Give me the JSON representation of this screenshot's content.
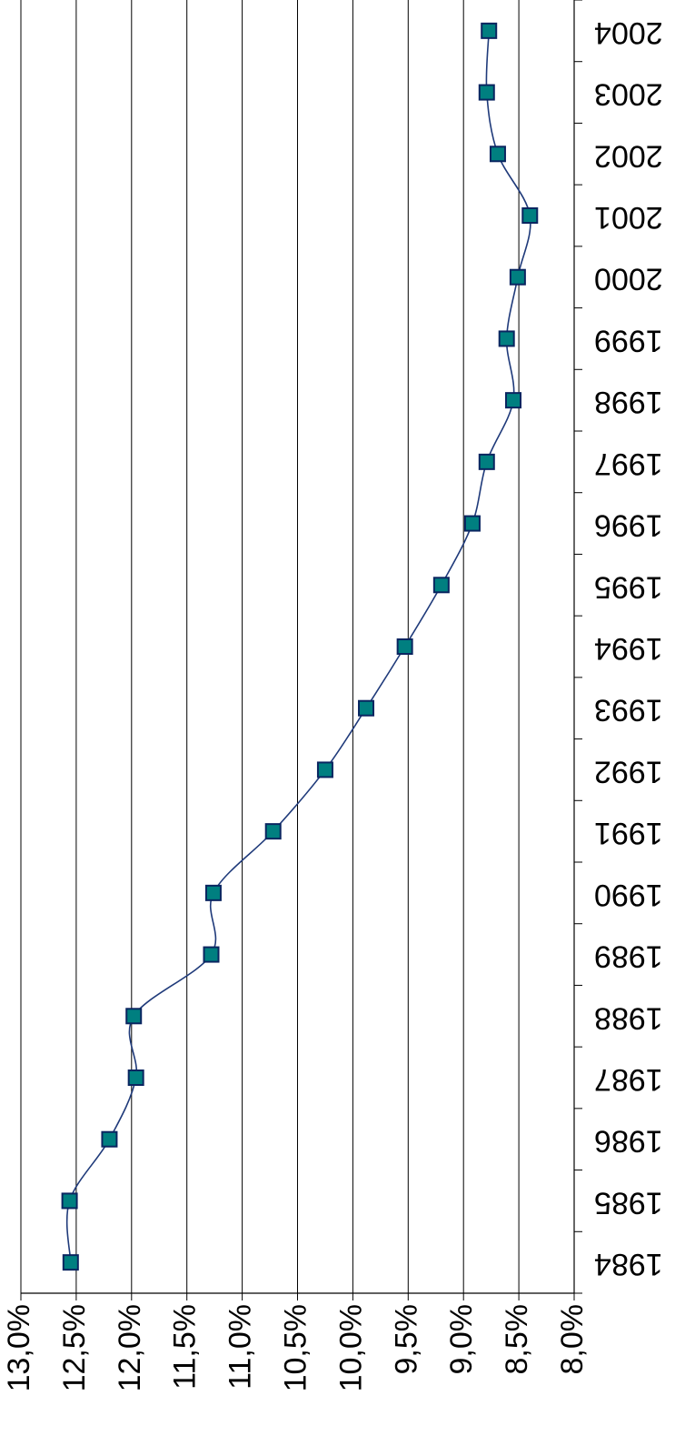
{
  "chart_data": {
    "type": "line",
    "title": "",
    "xlabel": "",
    "ylabel": "",
    "categories": [
      "1984",
      "1985",
      "1986",
      "1987",
      "1988",
      "1989",
      "1990",
      "1991",
      "1992",
      "1993",
      "1994",
      "1995",
      "1996",
      "1997",
      "1998",
      "1999",
      "2000",
      "2001",
      "2002",
      "2003",
      "2004"
    ],
    "series": [
      {
        "values": [
          12.55,
          12.56,
          12.2,
          11.96,
          11.98,
          11.28,
          11.26,
          10.72,
          10.25,
          9.88,
          9.53,
          9.2,
          8.92,
          8.79,
          8.55,
          8.61,
          8.51,
          8.4,
          8.69,
          8.79,
          8.77
        ]
      }
    ],
    "ylim": [
      8.0,
      13.0
    ],
    "y_ticks": [
      "8,0%",
      "8,5%",
      "9,0%",
      "9,5%",
      "10,0%",
      "10,5%",
      "11,0%",
      "11,5%",
      "12,0%",
      "12,5%",
      "13,0%"
    ],
    "grid": true,
    "orientation": "rotated-90",
    "colors": {
      "line": "#1f3a7a",
      "marker_fill": "#007f80",
      "marker_stroke": "#0a2560",
      "grid": "#000000",
      "axis": "#000000"
    }
  }
}
